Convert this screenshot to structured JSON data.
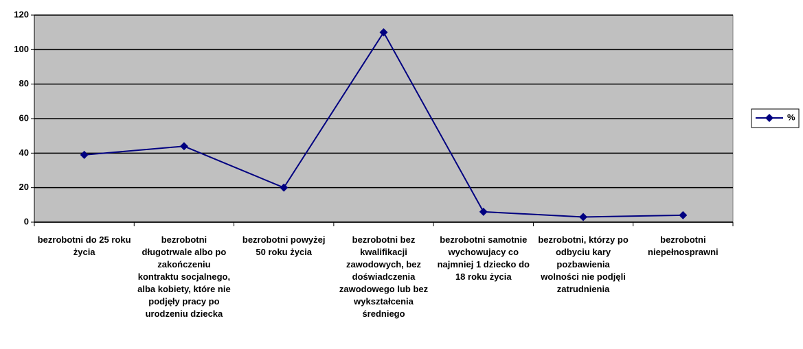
{
  "chart_data": {
    "type": "line",
    "categories": [
      "bezrobotni do 25 roku życia",
      "bezrobotni długotrwale albo po zakończeniu kontraktu socjalnego, alba kobiety, które nie podjęły pracy po urodzeniu dziecka",
      "bezrobotni powyżej 50 roku życia",
      "bezrobotni bez kwalifikacji zawodowych, bez doświadczenia zawodowego lub bez wykształcenia średniego",
      "bezrobotni samotnie wychowujacy co najmniej 1 dziecko do 18 roku życia",
      "bezrobotni, którzy po odbyciu kary pozbawienia wolności nie podjęli zatrudnienia",
      "bezrobotni niepełnosprawni"
    ],
    "series": [
      {
        "name": "%",
        "color": "#000080",
        "values": [
          39,
          44,
          20,
          110,
          6,
          3,
          4
        ]
      }
    ],
    "ylim": [
      0,
      120
    ],
    "yticks": [
      0,
      20,
      40,
      60,
      80,
      100,
      120
    ],
    "grid": true,
    "legend": "right"
  }
}
